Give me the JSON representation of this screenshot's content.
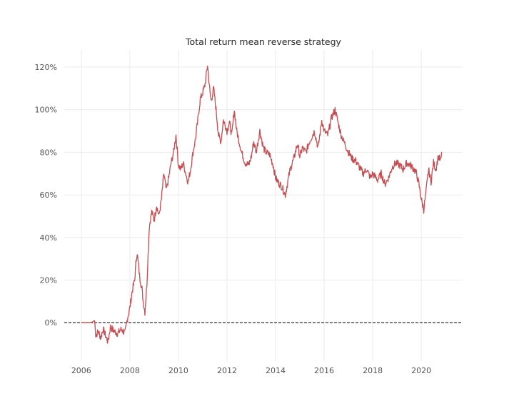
{
  "chart_data": {
    "type": "line",
    "title": "Total return mean reverse strategy",
    "xlabel": "",
    "ylabel": "",
    "x_ticks": [
      "2006",
      "2008",
      "2010",
      "2012",
      "2014",
      "2016",
      "2018",
      "2020"
    ],
    "y_ticks": [
      "0%",
      "20%",
      "40%",
      "60%",
      "80%",
      "100%",
      "120%"
    ],
    "xlim": [
      2005.3,
      2021.7
    ],
    "ylim": [
      -0.18,
      1.28
    ],
    "grid": true,
    "reference_line": {
      "y": 0,
      "style": "dashed",
      "color": "#000000"
    },
    "colors": {
      "series": "#c44e52",
      "grid": "#ebebeb",
      "text": "#555555"
    },
    "series": [
      {
        "color": "#c44e52",
        "x": [
          2006.0,
          2006.4,
          2006.55,
          2006.6,
          2006.7,
          2006.8,
          2006.9,
          2007.0,
          2007.1,
          2007.2,
          2007.35,
          2007.5,
          2007.65,
          2007.8,
          2007.9,
          2008.0,
          2008.1,
          2008.2,
          2008.25,
          2008.3,
          2008.4,
          2008.5,
          2008.55,
          2008.62,
          2008.7,
          2008.8,
          2008.9,
          2009.0,
          2009.1,
          2009.2,
          2009.3,
          2009.4,
          2009.5,
          2009.6,
          2009.7,
          2009.8,
          2009.9,
          2010.0,
          2010.1,
          2010.2,
          2010.3,
          2010.4,
          2010.5,
          2010.6,
          2010.7,
          2010.8,
          2010.9,
          2011.0,
          2011.1,
          2011.2,
          2011.3,
          2011.35,
          2011.45,
          2011.55,
          2011.65,
          2011.75,
          2011.85,
          2011.95,
          2012.0,
          2012.1,
          2012.2,
          2012.3,
          2012.4,
          2012.5,
          2012.6,
          2012.75,
          2012.9,
          2013.0,
          2013.1,
          2013.2,
          2013.35,
          2013.5,
          2013.6,
          2013.75,
          2013.9,
          2014.0,
          2014.1,
          2014.25,
          2014.4,
          2014.6,
          2014.75,
          2014.9,
          2015.0,
          2015.1,
          2015.25,
          2015.4,
          2015.6,
          2015.75,
          2015.9,
          2016.0,
          2016.15,
          2016.3,
          2016.45,
          2016.55,
          2016.7,
          2016.85,
          2017.0,
          2017.15,
          2017.3,
          2017.45,
          2017.6,
          2017.75,
          2017.9,
          2018.0,
          2018.2,
          2018.35,
          2018.5,
          2018.65,
          2018.8,
          2018.95,
          2019.1,
          2019.25,
          2019.4,
          2019.55,
          2019.7,
          2019.8,
          2019.9,
          2020.0,
          2020.1,
          2020.2,
          2020.3,
          2020.4,
          2020.5,
          2020.6,
          2020.7,
          2020.8,
          2020.85
        ],
        "y": [
          0.0,
          0.0,
          0.01,
          -0.06,
          -0.04,
          -0.07,
          -0.03,
          -0.06,
          -0.09,
          -0.02,
          -0.04,
          -0.05,
          -0.03,
          -0.05,
          0.02,
          0.07,
          0.15,
          0.2,
          0.28,
          0.33,
          0.22,
          0.16,
          0.1,
          0.05,
          0.18,
          0.45,
          0.52,
          0.48,
          0.55,
          0.5,
          0.58,
          0.7,
          0.62,
          0.68,
          0.75,
          0.8,
          0.88,
          0.74,
          0.72,
          0.75,
          0.7,
          0.66,
          0.72,
          0.8,
          0.86,
          0.95,
          1.05,
          1.08,
          1.12,
          1.21,
          1.08,
          1.04,
          1.1,
          1.0,
          0.88,
          0.85,
          0.95,
          0.92,
          0.9,
          0.94,
          0.88,
          1.0,
          0.9,
          0.85,
          0.8,
          0.75,
          0.74,
          0.78,
          0.85,
          0.8,
          0.9,
          0.82,
          0.8,
          0.79,
          0.74,
          0.68,
          0.66,
          0.64,
          0.6,
          0.72,
          0.77,
          0.84,
          0.78,
          0.82,
          0.8,
          0.85,
          0.9,
          0.82,
          0.95,
          0.9,
          0.88,
          0.96,
          1.0,
          0.95,
          0.88,
          0.84,
          0.8,
          0.77,
          0.76,
          0.73,
          0.7,
          0.72,
          0.68,
          0.7,
          0.67,
          0.7,
          0.65,
          0.68,
          0.73,
          0.75,
          0.74,
          0.72,
          0.75,
          0.74,
          0.72,
          0.7,
          0.65,
          0.58,
          0.53,
          0.62,
          0.72,
          0.66,
          0.75,
          0.72,
          0.78,
          0.76,
          0.8
        ]
      }
    ]
  }
}
